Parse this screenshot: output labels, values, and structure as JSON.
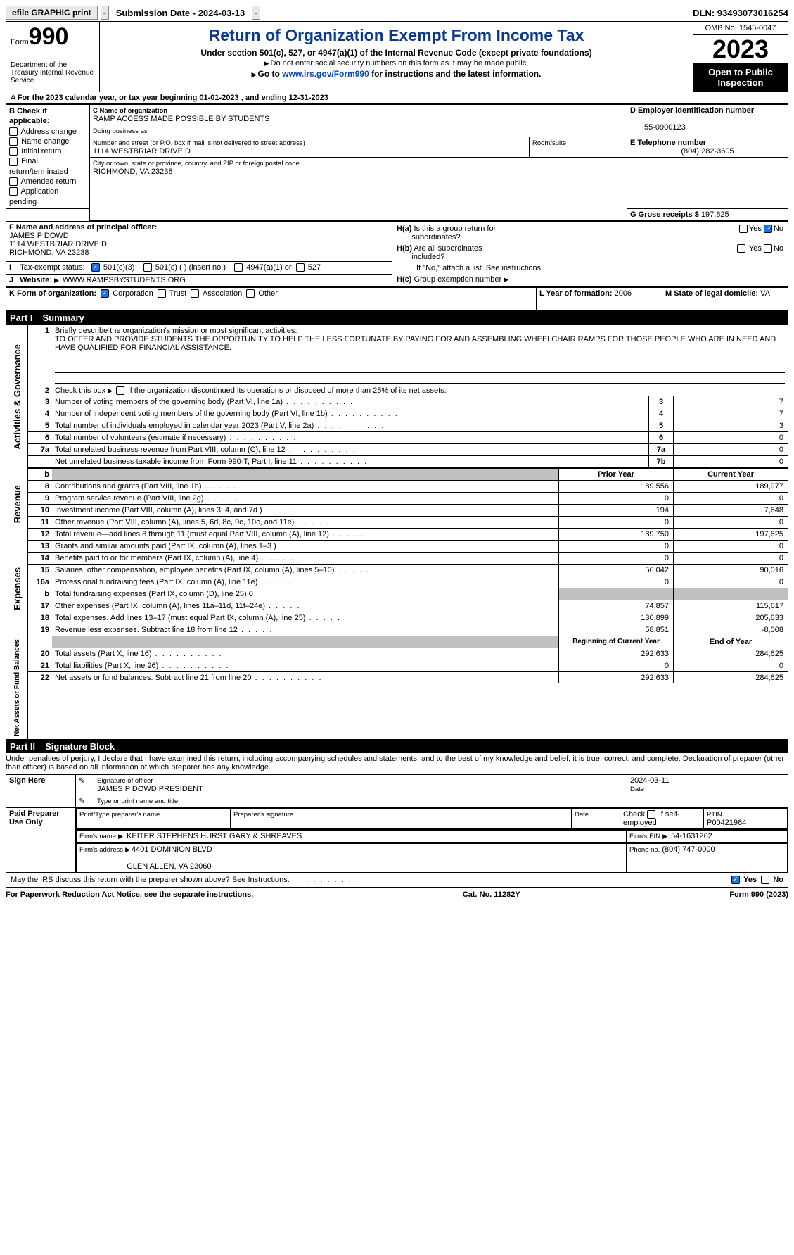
{
  "topbar": {
    "efile": "efile GRAPHIC print",
    "submission": "Submission Date - 2024-03-13",
    "dln": "DLN: 93493073016254"
  },
  "header": {
    "form": "Form",
    "num": "990",
    "dept": "Department of the Treasury Internal Revenue Service",
    "title": "Return of Organization Exempt From Income Tax",
    "sub1": "Under section 501(c), 527, or 4947(a)(1) of the Internal Revenue Code (except private foundations)",
    "sub2": "Do not enter social security numbers on this form as it may be made public.",
    "sub3a": "Go to ",
    "sub3link": "www.irs.gov/Form990",
    "sub3b": " for instructions and the latest information.",
    "omb": "OMB No. 1545-0047",
    "year": "2023",
    "open": "Open to Public Inspection"
  },
  "cal": "For the 2023 calendar year, or tax year beginning 01-01-2023   , and ending 12-31-2023",
  "secB": {
    "hdr": "B Check if applicable:",
    "items": [
      "Address change",
      "Name change",
      "Initial return",
      "Final return/terminated",
      "Amended return",
      "Application pending"
    ]
  },
  "secC": {
    "lbl1": "C Name of organization",
    "name": "RAMP ACCESS MADE POSSIBLE BY STUDENTS",
    "dba_lbl": "Doing business as",
    "addr_lbl": "Number and street (or P.O. box if mail is not delivered to street address)",
    "room_lbl": "Room/suite",
    "addr": "1114 WESTBRIAR DRIVE D",
    "city_lbl": "City or town, state or province, country, and ZIP or foreign postal code",
    "city": "RICHMOND, VA  23238"
  },
  "secD": {
    "lbl": "D Employer identification number",
    "val": "55-0900123"
  },
  "secE": {
    "lbl": "E Telephone number",
    "val": "(804) 282-3605"
  },
  "secG": {
    "lbl": "G Gross receipts $",
    "val": "197,625"
  },
  "secF": {
    "lbl": "F  Name and address of principal officer:",
    "name": "JAMES P DOWD",
    "addr1": "1114 WESTBRIAR DRIVE D",
    "addr2": "RICHMOND, VA  23238"
  },
  "secH": {
    "a": "H(a)  Is this a group return for subordinates?",
    "b": "H(b)  Are all subordinates included?",
    "bnote": "If \"No,\" attach a list. See instructions.",
    "c": "H(c)  Group exemption number",
    "yes": "Yes",
    "no": "No"
  },
  "secI": {
    "lbl": "Tax-exempt status:",
    "o1": "501(c)(3)",
    "o2": "501(c) (  ) (insert no.)",
    "o3": "4947(a)(1) or",
    "o4": "527"
  },
  "secJ": {
    "lbl": "Website:",
    "val": "WWW.RAMPSBYSTUDENTS.ORG"
  },
  "secK": {
    "lbl": "K Form of organization:",
    "o1": "Corporation",
    "o2": "Trust",
    "o3": "Association",
    "o4": "Other"
  },
  "secL": {
    "lbl": "L Year of formation:",
    "val": "2006"
  },
  "secM": {
    "lbl": "M State of legal domicile:",
    "val": "VA"
  },
  "part1": {
    "hdr_num": "Part I",
    "hdr_title": "Summary",
    "q1_lbl": "Briefly describe the organization's mission or most significant activities:",
    "q1_val": "TO OFFER AND PROVIDE STUDENTS THE OPPORTUNITY TO HELP THE LESS FORTUNATE BY PAYING FOR AND ASSEMBLING WHEELCHAIR RAMPS FOR THOSE PEOPLE WHO ARE IN NEED AND HAVE QUALIFIED FOR FINANCIAL ASSISTANCE.",
    "q2_lbl": "Check this box       if the organization discontinued its operations or disposed of more than 25% of its net assets.",
    "side_ag": "Activities & Governance",
    "side_rev": "Revenue",
    "side_exp": "Expenses",
    "side_net": "Net Assets or Fund Balances",
    "rows_ag": [
      {
        "n": "3",
        "lbl": "Number of voting members of the governing body (Part VI, line 1a)",
        "box": "3",
        "val": "7"
      },
      {
        "n": "4",
        "lbl": "Number of independent voting members of the governing body (Part VI, line 1b)",
        "box": "4",
        "val": "7"
      },
      {
        "n": "5",
        "lbl": "Total number of individuals employed in calendar year 2023 (Part V, line 2a)",
        "box": "5",
        "val": "3"
      },
      {
        "n": "6",
        "lbl": "Total number of volunteers (estimate if necessary)",
        "box": "6",
        "val": "0"
      },
      {
        "n": "7a",
        "lbl": "Total unrelated business revenue from Part VIII, column (C), line 12",
        "box": "7a",
        "val": "0"
      },
      {
        "n": "",
        "lbl": "Net unrelated business taxable income from Form 990-T, Part I, line 11",
        "box": "7b",
        "val": "0"
      }
    ],
    "col_prior": "Prior Year",
    "col_current": "Current Year",
    "rows_rev": [
      {
        "n": "8",
        "lbl": "Contributions and grants (Part VIII, line 1h)",
        "p": "189,556",
        "c": "189,977"
      },
      {
        "n": "9",
        "lbl": "Program service revenue (Part VIII, line 2g)",
        "p": "0",
        "c": "0"
      },
      {
        "n": "10",
        "lbl": "Investment income (Part VIII, column (A), lines 3, 4, and 7d )",
        "p": "194",
        "c": "7,648"
      },
      {
        "n": "11",
        "lbl": "Other revenue (Part VIII, column (A), lines 5, 6d, 8c, 9c, 10c, and 11e)",
        "p": "0",
        "c": "0"
      },
      {
        "n": "12",
        "lbl": "Total revenue—add lines 8 through 11 (must equal Part VIII, column (A), line 12)",
        "p": "189,750",
        "c": "197,625"
      }
    ],
    "rows_exp": [
      {
        "n": "13",
        "lbl": "Grants and similar amounts paid (Part IX, column (A), lines 1–3 )",
        "p": "0",
        "c": "0"
      },
      {
        "n": "14",
        "lbl": "Benefits paid to or for members (Part IX, column (A), line 4)",
        "p": "0",
        "c": "0"
      },
      {
        "n": "15",
        "lbl": "Salaries, other compensation, employee benefits (Part IX, column (A), lines 5–10)",
        "p": "56,042",
        "c": "90,016"
      },
      {
        "n": "16a",
        "lbl": "Professional fundraising fees (Part IX, column (A), line 11e)",
        "p": "0",
        "c": "0"
      },
      {
        "n": "b",
        "lbl": "Total fundraising expenses (Part IX, column (D), line 25) 0",
        "p": "",
        "c": "",
        "shade": true
      },
      {
        "n": "17",
        "lbl": "Other expenses (Part IX, column (A), lines 11a–11d, 11f–24e)",
        "p": "74,857",
        "c": "115,617"
      },
      {
        "n": "18",
        "lbl": "Total expenses. Add lines 13–17 (must equal Part IX, column (A), line 25)",
        "p": "130,899",
        "c": "205,633"
      },
      {
        "n": "19",
        "lbl": "Revenue less expenses. Subtract line 18 from line 12",
        "p": "58,851",
        "c": "-8,008"
      }
    ],
    "col_begin": "Beginning of Current Year",
    "col_end": "End of Year",
    "rows_net": [
      {
        "n": "20",
        "lbl": "Total assets (Part X, line 16)",
        "p": "292,633",
        "c": "284,625"
      },
      {
        "n": "21",
        "lbl": "Total liabilities (Part X, line 26)",
        "p": "0",
        "c": "0"
      },
      {
        "n": "22",
        "lbl": "Net assets or fund balances. Subtract line 21 from line 20",
        "p": "292,633",
        "c": "284,625"
      }
    ]
  },
  "part2": {
    "hdr_num": "Part II",
    "hdr_title": "Signature Block",
    "decl": "Under penalties of perjury, I declare that I have examined this return, including accompanying schedules and statements, and to the best of my knowledge and belief, it is true, correct, and complete. Declaration of preparer (other than officer) is based on all information of which preparer has any knowledge.",
    "sign_here": "Sign Here",
    "sig_officer_lbl": "Signature of officer",
    "sig_officer": "JAMES P DOWD PRESIDENT",
    "sig_title_lbl": "Type or print name and title",
    "date_lbl": "Date",
    "date_val": "2024-03-11",
    "paid": "Paid Preparer Use Only",
    "prep_name_lbl": "Print/Type preparer's name",
    "prep_sig_lbl": "Preparer's signature",
    "prep_date_lbl": "Date",
    "self_lbl": "Check       if self-employed",
    "ptin_lbl": "PTIN",
    "ptin": "P00421964",
    "firm_name_lbl": "Firm's name",
    "firm_name": "KEITER STEPHENS HURST GARY & SHREAVES",
    "firm_ein_lbl": "Firm's EIN",
    "firm_ein": "54-1631262",
    "firm_addr_lbl": "Firm's address",
    "firm_addr1": "4401 DOMINION BLVD",
    "firm_addr2": "GLEN ALLEN, VA  23060",
    "phone_lbl": "Phone no.",
    "phone": "(804) 747-0000",
    "may_irs": "May the IRS discuss this return with the preparer shown above? See Instructions.",
    "yes": "Yes",
    "no": "No"
  },
  "footer": {
    "left": "For Paperwork Reduction Act Notice, see the separate instructions.",
    "mid": "Cat. No. 11282Y",
    "right": "Form 990 (2023)"
  }
}
